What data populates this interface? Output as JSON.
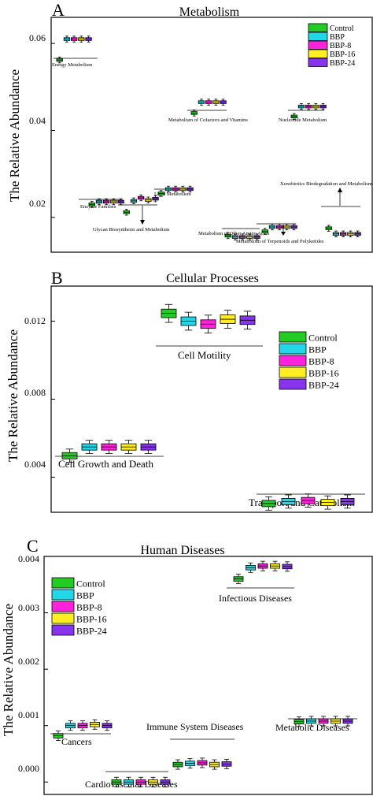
{
  "chart_data": [
    {
      "type": "boxplot",
      "panel_letter": "A",
      "title": "Metabolism",
      "ylabel": "The Relative Abundance",
      "ylim": [
        0.012,
        0.066
      ],
      "yticks": [
        "0.02",
        "0.04",
        "0.06"
      ],
      "ytick_values": [
        0.02,
        0.04,
        0.06
      ],
      "legend": [
        "Control",
        "BBP",
        "BBP-8",
        "BBP-16",
        "BBP-24"
      ],
      "legend_position": "top-right",
      "series_colors": [
        "#22cc22",
        "#22d8e8",
        "#ff22dd",
        "#ffee22",
        "#8833ee"
      ],
      "groups": [
        {
          "label": "Energy Metabolism",
          "values": [
            0.0562,
            0.061,
            0.061,
            0.061,
            0.061
          ]
        },
        {
          "label": "Enzyme Families",
          "values": [
            0.023,
            0.0236,
            0.0236,
            0.0236,
            0.0236
          ]
        },
        {
          "label": "Glycan Biosynthesis and Metabolism",
          "values": [
            0.0212,
            0.0238,
            0.0245,
            0.024,
            0.0243
          ]
        },
        {
          "label": "Lipid Metabolism",
          "values": [
            0.0255,
            0.0265,
            0.0265,
            0.0265,
            0.0265
          ]
        },
        {
          "label": "Metabolism of Cofactors and Vitamins",
          "values": [
            0.044,
            0.0465,
            0.0465,
            0.0465,
            0.0465
          ]
        },
        {
          "label": "Metabolism of Other Amino Acids",
          "values": [
            0.0158,
            0.0155,
            0.0155,
            0.0155,
            0.0155
          ]
        },
        {
          "label": "Metabolism of Terpenoids and Polyketides",
          "values": [
            0.0168,
            0.0178,
            0.0178,
            0.0178,
            0.0178
          ]
        },
        {
          "label": "Nucleotide Metabolism",
          "values": [
            0.0432,
            0.0455,
            0.0455,
            0.0455,
            0.0455
          ]
        },
        {
          "label": "Xenobiotics Biodegradation and Metabolism",
          "values": [
            0.0175,
            0.0162,
            0.0162,
            0.0162,
            0.0162
          ]
        }
      ]
    },
    {
      "type": "boxplot",
      "panel_letter": "B",
      "title": "Cellular Processes",
      "ylabel": "The Relative Abundance",
      "ylim": [
        0.0022,
        0.0138
      ],
      "yticks": [
        "0.004",
        "0.008",
        "0.012"
      ],
      "ytick_values": [
        0.004,
        0.008,
        0.012
      ],
      "legend": [
        "Control",
        "BBP",
        "BBP-8",
        "BBP-16",
        "BBP-24"
      ],
      "legend_position": "right",
      "series_colors": [
        "#22cc22",
        "#22d8e8",
        "#ff22dd",
        "#ffee22",
        "#8833ee"
      ],
      "groups": [
        {
          "label": "Cell Growth and Death",
          "values": [
            0.0051,
            0.00555,
            0.00555,
            0.00555,
            0.00555
          ]
        },
        {
          "label": "Cell Motility",
          "values": [
            0.0124,
            0.012,
            0.01185,
            0.0121,
            0.01205
          ]
        },
        {
          "label": "Transport and Catabolism",
          "values": [
            0.00265,
            0.00275,
            0.0028,
            0.0027,
            0.00275
          ]
        }
      ]
    },
    {
      "type": "boxplot",
      "panel_letter": "C",
      "title": "Human Diseases",
      "ylabel": "The Relative Abundance",
      "ylim": [
        -0.00022,
        0.004
      ],
      "yticks": [
        "0.000",
        "0.001",
        "0.002",
        "0.003",
        "0.004"
      ],
      "ytick_values": [
        0.0,
        0.001,
        0.002,
        0.003,
        0.004
      ],
      "legend": [
        "Control",
        "BBP",
        "BBP-8",
        "BBP-16",
        "BBP-24"
      ],
      "legend_position": "top-left",
      "series_colors": [
        "#22cc22",
        "#22d8e8",
        "#ff22dd",
        "#ffee22",
        "#8833ee"
      ],
      "groups": [
        {
          "label": "Cancers",
          "values": [
            0.00082,
            0.001,
            0.001,
            0.00102,
            0.001
          ]
        },
        {
          "label": "Cardiovascular Diseases",
          "values": [
            0.0,
            0.0,
            0.0,
            0.0,
            0.0
          ]
        },
        {
          "label": "Immune System Diseases",
          "values": [
            0.00031,
            0.00033,
            0.00034,
            0.00031,
            0.00032
          ]
        },
        {
          "label": "Infectious Diseases",
          "values": [
            0.0036,
            0.0038,
            0.00383,
            0.00383,
            0.00382
          ]
        },
        {
          "label": "Metabolic Diseases",
          "values": [
            0.00107,
            0.00108,
            0.00108,
            0.00108,
            0.00108
          ]
        }
      ]
    }
  ]
}
